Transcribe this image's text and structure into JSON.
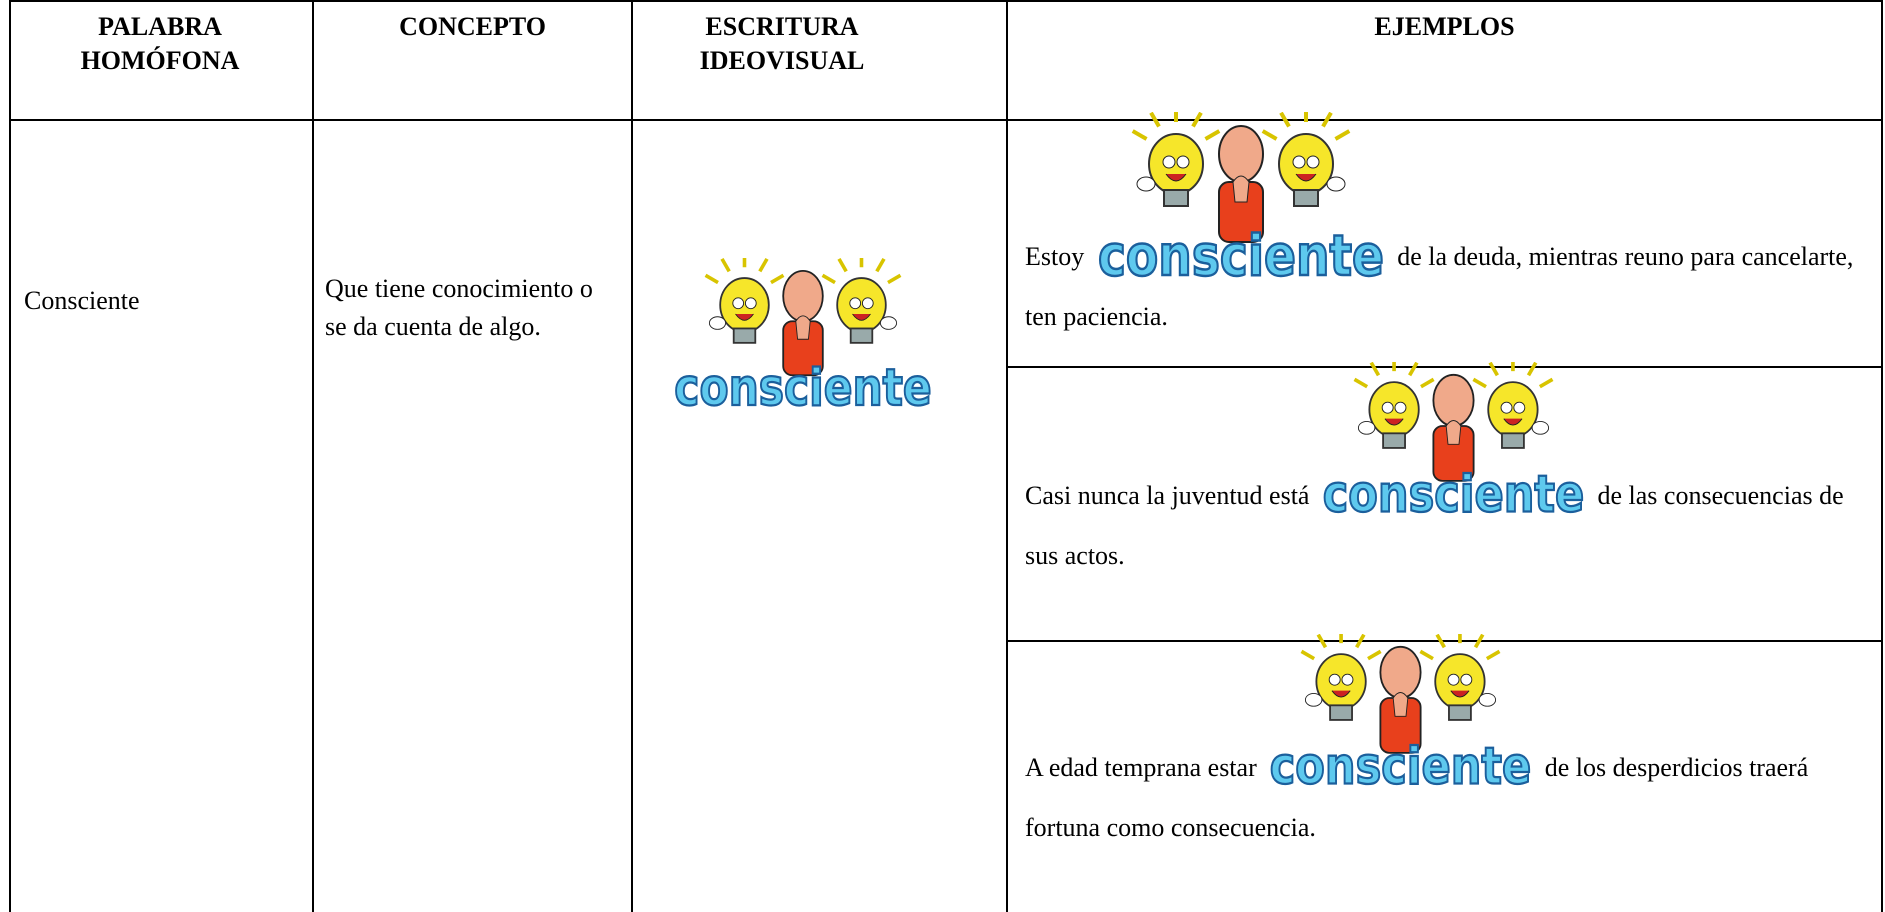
{
  "table": {
    "header": [
      "PALABRA HOMÓFONA",
      "CONCEPTO",
      "ESCRITURA IDEOVISUAL",
      "EJEMPLOS"
    ],
    "rows": [
      {
        "word": "Consciente",
        "concept": "Que tiene conocimiento o se da cuenta de algo.",
        "illustration_word": "consciente",
        "examples": [
          {
            "before": "Estoy",
            "after": "de la deuda, mientras reuno para cancelarte, ten paciencia."
          },
          {
            "before": "Casi nunca la juventud está",
            "after": "de las consecuencias de sus actos."
          },
          {
            "before": "A edad temprana estar",
            "after": "de los desperdicios traerá fortuna como consecuencia."
          }
        ]
      }
    ]
  }
}
